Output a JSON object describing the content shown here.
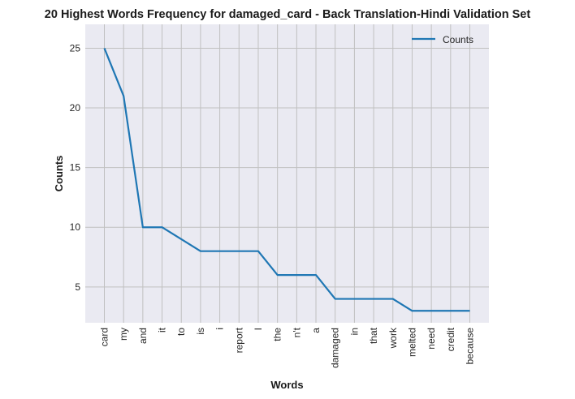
{
  "chart_data": {
    "type": "line",
    "title": "20 Highest Words Frequency for damaged_card - Back Translation-Hindi Validation Set",
    "xlabel": "Words",
    "ylabel": "Counts",
    "categories": [
      "card",
      "my",
      "and",
      "it",
      "to",
      "is",
      "i",
      "report",
      "I",
      "the",
      "n't",
      "a",
      "damaged",
      "in",
      "that",
      "work",
      "melted",
      "need",
      "credit",
      "because"
    ],
    "series": [
      {
        "name": "Counts",
        "values": [
          25,
          21,
          10,
          10,
          9,
          8,
          8,
          8,
          8,
          6,
          6,
          6,
          4,
          4,
          4,
          4,
          3,
          3,
          3,
          3
        ]
      }
    ],
    "ylim": [
      2,
      27
    ],
    "yticks": [
      5,
      10,
      15,
      20,
      25
    ],
    "grid": true,
    "legend_position": "top-right",
    "colors": {
      "line": "#1f77b4",
      "plot_bg": "#eaeaf2",
      "grid": "#c0c0c0"
    }
  }
}
